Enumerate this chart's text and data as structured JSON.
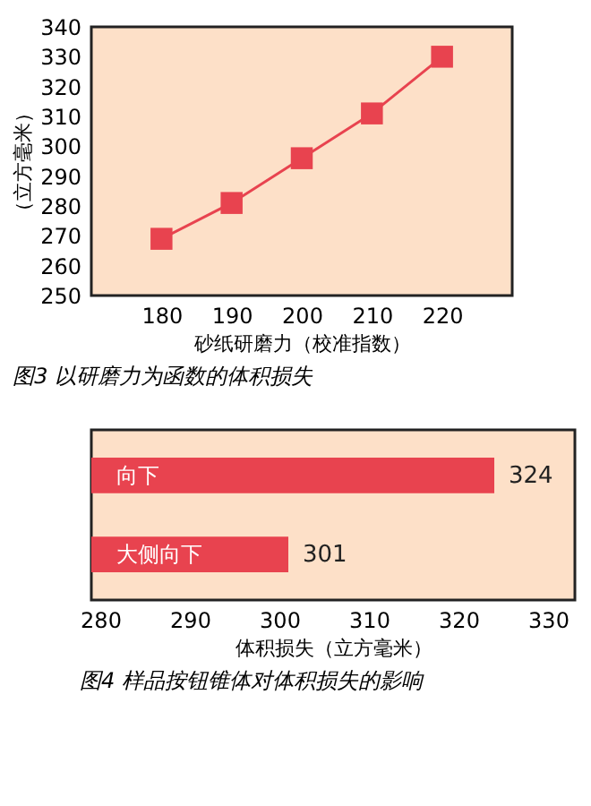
{
  "chart_data": [
    {
      "type": "line",
      "title": "图3 以研磨力为函数的体积损失",
      "xlabel": "砂纸研磨力（校准指数）",
      "ylabel": "（立方毫米）",
      "x": [
        180,
        190,
        200,
        210,
        220
      ],
      "series": [
        {
          "color": "#e8434f",
          "values": [
            269,
            281,
            296,
            311,
            330
          ]
        }
      ],
      "xlim": [
        170,
        230
      ],
      "xticks": [
        180,
        190,
        200,
        210,
        220
      ],
      "ylim": [
        250,
        340
      ],
      "yticks": [
        250,
        260,
        270,
        280,
        290,
        300,
        310,
        320,
        330,
        340
      ],
      "marker": "square",
      "line_style": "solid",
      "grid": false
    },
    {
      "type": "bar",
      "orientation": "horizontal",
      "title": "图4 样品按钮锥体对体积损失的影响",
      "xlabel": "体积损失（立方毫米）",
      "categories": [
        "向下",
        "大侧向下"
      ],
      "values": [
        324,
        301
      ],
      "color": "#e8434f",
      "data_labels": true,
      "xlim": [
        279,
        333
      ],
      "xticks": [
        280,
        290,
        300,
        310,
        320,
        330
      ],
      "tick_labels": "x",
      "grid": false
    }
  ]
}
